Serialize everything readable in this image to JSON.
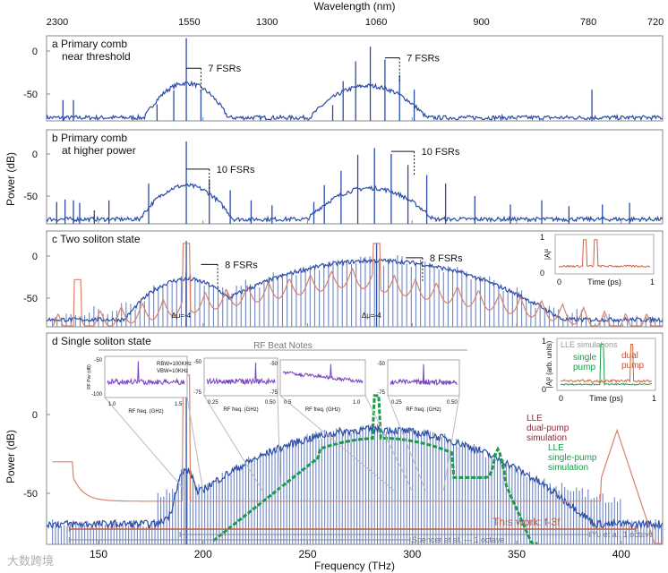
{
  "chart_data": {
    "type": "line",
    "top_axis": {
      "label": "Wavelength (nm)",
      "ticks": [
        "2300",
        "1550",
        "1300",
        "1060",
        "900",
        "780",
        "720"
      ],
      "tick_thz": [
        130.3,
        193.4,
        230.6,
        282.8,
        333.1,
        384.3,
        416.4
      ]
    },
    "x_axis": {
      "label": "Frequency (THz)",
      "ticks": [
        150,
        200,
        250,
        300,
        350,
        400
      ],
      "range": [
        125,
        420
      ]
    },
    "y_label": "Power (dB)",
    "y_ticks": [
      0,
      -50
    ],
    "panels": [
      {
        "id": "a",
        "title": "a  Primary comb",
        "title2": "near threshold",
        "ylim": [
          -82,
          18
        ],
        "floor": -80,
        "humps": [
          {
            "c": 192,
            "w": 9,
            "peak": -40
          },
          {
            "c": 279,
            "w": 13,
            "peak": -43
          }
        ],
        "lines": [
          [
            133,
            -57
          ],
          [
            138,
            -57
          ],
          [
            178,
            -62
          ],
          [
            186,
            -46
          ],
          [
            192,
            15
          ],
          [
            199,
            -45
          ],
          [
            262,
            -63
          ],
          [
            267,
            -35
          ],
          [
            273,
            -12
          ],
          [
            280,
            5
          ],
          [
            287,
            -10
          ],
          [
            294,
            -28
          ],
          [
            301,
            -45
          ],
          [
            386,
            -45
          ]
        ],
        "annotations": [
          {
            "text": "7 FSRs",
            "f1": 192,
            "f2": 199,
            "db": -20
          },
          {
            "text": "7 FSRs",
            "f1": 287,
            "f2": 294,
            "db": -8
          }
        ]
      },
      {
        "id": "b",
        "title": "b  Primary comb",
        "title2": "at higher power",
        "ylim": [
          -82,
          18
        ],
        "floor": -80,
        "humps": [
          {
            "c": 192,
            "w": 10,
            "peak": -40
          },
          {
            "c": 280,
            "w": 14,
            "peak": -43
          }
        ],
        "lines": [
          [
            130,
            -57
          ],
          [
            134,
            -54
          ],
          [
            138,
            -55
          ],
          [
            141,
            -58
          ],
          [
            148,
            -67
          ],
          [
            155,
            -55
          ],
          [
            174,
            -35
          ],
          [
            192,
            15
          ],
          [
            203,
            -30
          ],
          [
            213,
            -43
          ],
          [
            223,
            -55
          ],
          [
            233,
            -61
          ],
          [
            253,
            -57
          ],
          [
            258,
            -37
          ],
          [
            266,
            -20
          ],
          [
            274,
            -1
          ],
          [
            282,
            7
          ],
          [
            290,
            0
          ],
          [
            298,
            -13
          ],
          [
            307,
            -25
          ],
          [
            316,
            -35
          ],
          [
            330,
            -50
          ],
          [
            347,
            -60
          ],
          [
            362,
            -55
          ],
          [
            375,
            -62
          ],
          [
            391,
            -60
          ],
          [
            404,
            -58
          ]
        ],
        "annotations": [
          {
            "text": "10 FSRs",
            "f1": 192,
            "f2": 203,
            "db": -18
          },
          {
            "text": "10 FSRs",
            "f1": 290,
            "f2": 301,
            "db": 3
          }
        ]
      },
      {
        "id": "c",
        "title": "c  Two soliton state",
        "ylim": [
          -82,
          18
        ],
        "floor": -78,
        "comb_spacing": 2.2,
        "humps": [
          {
            "c": 192,
            "w": 12,
            "peak": -30
          },
          {
            "c": 283,
            "w": 30,
            "peak": -8
          }
        ],
        "lines": [
          [
            192,
            18
          ],
          [
            283,
            15
          ]
        ],
        "envelope_color": "#d9826a",
        "annotations": [
          {
            "text": "8 FSRs",
            "f1": 199,
            "f2": 207,
            "db": -10
          },
          {
            "text": "8 FSRs",
            "f1": 297,
            "f2": 305,
            "db": -2
          }
        ],
        "delta_mu": [
          "Δμ=-4",
          "Δμ=-4"
        ],
        "inset": {
          "ylabel": "|A|²",
          "xlabel": "Time (ps)",
          "xticks": [
            "0",
            "1"
          ],
          "yticks": [
            "0",
            "1"
          ]
        }
      },
      {
        "id": "d",
        "title": "d  Single soliton state",
        "ylim": [
          -80,
          30
        ],
        "floor": -72,
        "comb_spacing": 1.4,
        "humps": [
          {
            "c": 283,
            "w": 38,
            "peak": -12
          },
          {
            "c": 192,
            "w": 4,
            "peak": -38
          }
        ],
        "lines": [
          [
            192,
            25
          ]
        ],
        "envelope_color": "#d9826a",
        "sim_color": "#1a9a4a",
        "labels": {
          "dual": "LLE\ndual-pump\nsimulation",
          "single": "LLE\nsingle-pump\nsimulation",
          "rf": "RF Beat Notes"
        },
        "spans": [
          {
            "text": "This work: f-3f",
            "f1": 136,
            "f2": 407,
            "color": "#c0583a"
          },
          {
            "text": "Yu et al.  1 octave",
            "f1": 189,
            "f2": 385,
            "color": "#888888"
          },
          {
            "text": "Spencer  et al. — 1 octave",
            "f1": 136,
            "f2": 299,
            "color": "#888888"
          }
        ],
        "rf_insets": [
          {
            "yticks": [
              "-50",
              "-100"
            ],
            "xticks": [
              "1.0",
              "1.5"
            ],
            "xlabel": "RF freq. (GHz)",
            "ylabel": "RF Pwr (dB)",
            "note": "RBW=100KHz\nVBW=10KHz"
          },
          {
            "yticks": [
              "-50",
              "-75"
            ],
            "xticks": [
              "0.25",
              "0.50"
            ],
            "xlabel": "RF freq. (GHz)"
          },
          {
            "yticks": [
              "-50",
              "-75"
            ],
            "xticks": [
              "0.5",
              "1.0"
            ],
            "xlabel": "RF freq. (GHz)"
          },
          {
            "yticks": [
              "-50",
              "-75"
            ],
            "xticks": [
              "0.25",
              "0.50"
            ],
            "xlabel": "RF freq. (GHz)"
          }
        ],
        "inset": {
          "title": "LLE simulations",
          "ylabel": "|A|² (arb. units)",
          "xlabel": "Time (ps)",
          "xticks": [
            "0",
            "1"
          ],
          "yticks": [
            "0",
            "1"
          ],
          "single": "single\npump",
          "dual": "dual\npump"
        }
      }
    ],
    "colors": {
      "spectrum": "#2a4ca8",
      "rf": "#7a45c2",
      "lle": "#d9826a",
      "sim": "#1a9a4a"
    }
  },
  "watermark": "大数跨境"
}
